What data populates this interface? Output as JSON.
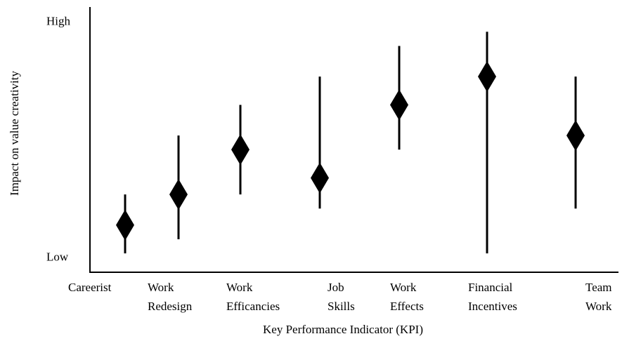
{
  "chart_data": {
    "type": "range_diamond",
    "x_label": "Key Performance Indicator (KPI)",
    "y_label": "Impact on value creativity",
    "categories": [
      [
        "Careerist"
      ],
      [
        "Work",
        "Redesign"
      ],
      [
        "Work",
        "Efficancies"
      ],
      [
        "Job",
        "Skills"
      ],
      [
        "Work",
        "Effects"
      ],
      [
        "Financial",
        "Incentives"
      ],
      [
        "Team",
        "Work"
      ]
    ],
    "values": [
      1.4,
      2.7,
      4.6,
      3.4,
      6.5,
      7.7,
      5.2
    ],
    "low": [
      0.2,
      0.8,
      2.7,
      2.1,
      4.6,
      0.2,
      2.1
    ],
    "high": [
      2.7,
      5.2,
      6.5,
      7.7,
      9.0,
      9.6,
      7.7
    ],
    "color": "#000000",
    "ylim": [
      -0.6,
      10.65
    ],
    "yticks": [
      {
        "value": 0,
        "label": "Low"
      },
      {
        "value": 10,
        "label": "High"
      }
    ]
  }
}
